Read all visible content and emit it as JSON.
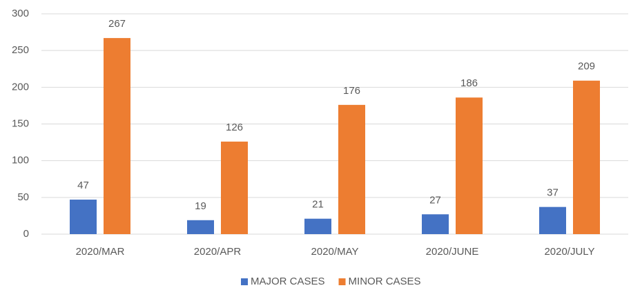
{
  "chart_data": {
    "type": "bar",
    "categories": [
      "2020/MAR",
      "2020/APR",
      "2020/MAY",
      "2020/JUNE",
      "2020/JULY"
    ],
    "series": [
      {
        "name": "MAJOR CASES",
        "color": "#4472c4",
        "values": [
          47,
          19,
          21,
          27,
          37
        ]
      },
      {
        "name": "MINOR CASES",
        "color": "#ed7d31",
        "values": [
          267,
          126,
          176,
          186,
          209
        ]
      }
    ],
    "ylim": [
      0,
      300
    ],
    "yticks": [
      0,
      50,
      100,
      150,
      200,
      250,
      300
    ],
    "grid": true,
    "legend": "bottom"
  }
}
